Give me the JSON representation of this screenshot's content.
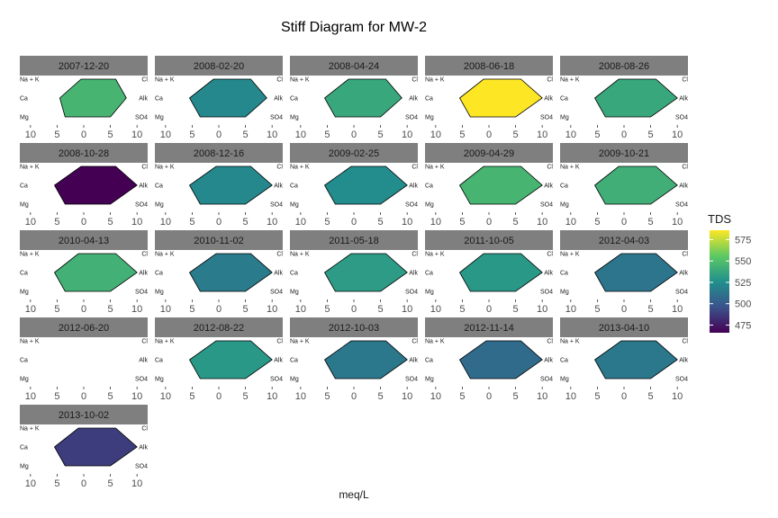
{
  "chart_data": {
    "type": "stiff-diagram",
    "title": "Stiff Diagram for MW-2",
    "xlabel": "meq/L",
    "x_ticks": [
      "10",
      "5",
      "0",
      "5",
      "10"
    ],
    "xlim": [
      -12,
      12
    ],
    "left_ions": [
      "Na + K",
      "Ca",
      "Mg"
    ],
    "right_ions": [
      "Cl",
      "Alk",
      "SO4"
    ],
    "legend": {
      "title": "TDS",
      "ticks": [
        475,
        500,
        525,
        550,
        575
      ],
      "range": [
        466,
        586
      ],
      "placement": "right"
    },
    "panels": [
      {
        "label": "2007-12-20",
        "tds": 545,
        "left": [
          0.5,
          4.5,
          3.5
        ],
        "right": [
          6,
          8,
          5
        ]
      },
      {
        "label": "2008-02-20",
        "tds": 522,
        "left": [
          1,
          5.5,
          3.5
        ],
        "right": [
          6,
          9,
          5
        ]
      },
      {
        "label": "2008-04-24",
        "tds": 538,
        "left": [
          1,
          5.5,
          3.5
        ],
        "right": [
          6,
          9,
          5
        ]
      },
      {
        "label": "2008-06-18",
        "tds": 586,
        "left": [
          1,
          5.5,
          3.5
        ],
        "right": [
          6,
          10,
          5
        ]
      },
      {
        "label": "2008-08-26",
        "tds": 538,
        "left": [
          1,
          5.5,
          3.5
        ],
        "right": [
          6,
          10,
          5
        ]
      },
      {
        "label": "2008-10-28",
        "tds": 466,
        "left": [
          0.5,
          5.5,
          3.5
        ],
        "right": [
          6,
          10,
          5
        ]
      },
      {
        "label": "2008-12-16",
        "tds": 522,
        "left": [
          0.5,
          5.5,
          3.5
        ],
        "right": [
          6,
          10,
          5
        ]
      },
      {
        "label": "2009-02-25",
        "tds": 524,
        "left": [
          0.5,
          5.5,
          3.5
        ],
        "right": [
          6,
          10,
          5
        ]
      },
      {
        "label": "2009-04-29",
        "tds": 545,
        "left": [
          1,
          5.5,
          3.5
        ],
        "right": [
          6,
          10,
          5
        ]
      },
      {
        "label": "2009-10-21",
        "tds": 542,
        "left": [
          1,
          5.5,
          3.5
        ],
        "right": [
          6,
          10,
          5
        ]
      },
      {
        "label": "2010-04-13",
        "tds": 543,
        "left": [
          1,
          5.5,
          3.5
        ],
        "right": [
          6,
          10,
          5
        ]
      },
      {
        "label": "2010-11-02",
        "tds": 516,
        "left": [
          0.5,
          5.5,
          3.5
        ],
        "right": [
          6,
          10,
          5
        ]
      },
      {
        "label": "2011-05-18",
        "tds": 532,
        "left": [
          0.5,
          5.5,
          3.5
        ],
        "right": [
          6,
          10,
          5
        ]
      },
      {
        "label": "2011-10-05",
        "tds": 530,
        "left": [
          1,
          5.5,
          3.5
        ],
        "right": [
          6,
          10,
          5
        ]
      },
      {
        "label": "2012-04-03",
        "tds": 513,
        "left": [
          0.5,
          5.5,
          3.5
        ],
        "right": [
          6,
          10,
          5
        ]
      },
      {
        "label": "2012-06-20",
        "tds": null,
        "left": null,
        "right": null
      },
      {
        "label": "2012-08-22",
        "tds": 530,
        "left": [
          0.5,
          5.5,
          3.5
        ],
        "right": [
          6,
          10,
          5
        ]
      },
      {
        "label": "2012-10-03",
        "tds": 514,
        "left": [
          0.5,
          5.5,
          3.5
        ],
        "right": [
          6,
          10,
          5
        ]
      },
      {
        "label": "2012-11-14",
        "tds": 508,
        "left": [
          0.5,
          5.5,
          3.5
        ],
        "right": [
          6,
          10,
          5
        ]
      },
      {
        "label": "2013-04-10",
        "tds": 514,
        "left": [
          0.5,
          5.5,
          3.5
        ],
        "right": [
          6,
          10,
          5
        ]
      },
      {
        "label": "2013-10-02",
        "tds": 488,
        "left": [
          1,
          5.5,
          3.5
        ],
        "right": [
          6,
          10,
          5
        ]
      }
    ]
  }
}
